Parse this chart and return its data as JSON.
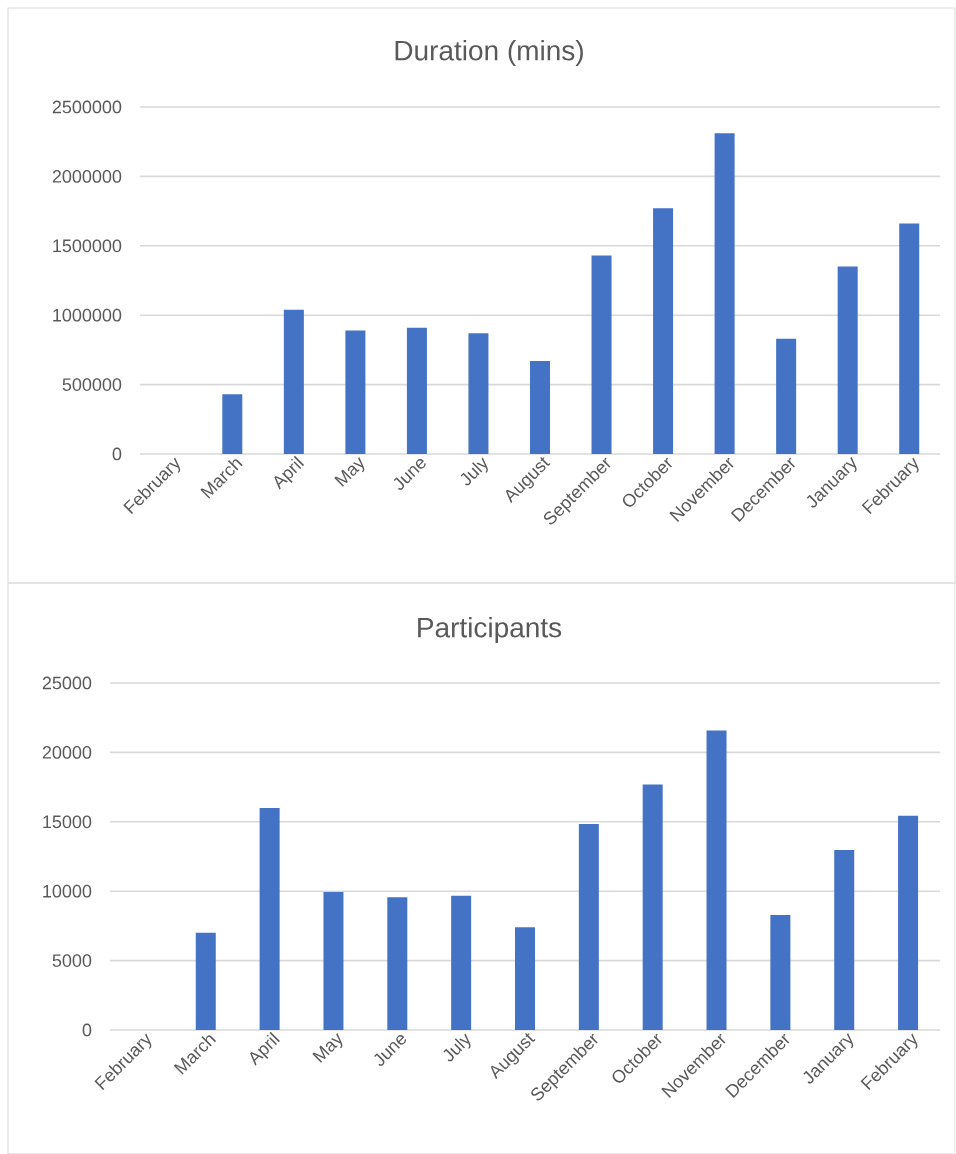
{
  "chart_data": [
    {
      "type": "bar",
      "title": "Duration (mins)",
      "categories": [
        "February",
        "March",
        "April",
        "May",
        "June",
        "July",
        "August",
        "September",
        "October",
        "November",
        "December",
        "January",
        "February"
      ],
      "values": [
        0,
        430000,
        1040000,
        890000,
        910000,
        870000,
        670000,
        1430000,
        1770000,
        2310000,
        830000,
        1350000,
        1660000
      ],
      "color": "#4472c4",
      "ylim": [
        0,
        2500000
      ],
      "yticks": [
        0,
        500000,
        1000000,
        1500000,
        2000000,
        2500000
      ],
      "grid": "y"
    },
    {
      "type": "bar",
      "title": "Participants",
      "categories": [
        "February",
        "March",
        "April",
        "May",
        "June",
        "July",
        "August",
        "September",
        "October",
        "November",
        "December",
        "January",
        "February"
      ],
      "values": [
        0,
        7000,
        16000,
        9950,
        9560,
        9680,
        7400,
        14840,
        17690,
        21570,
        8290,
        12970,
        15440
      ],
      "color": "#4472c4",
      "ylim": [
        0,
        25000
      ],
      "yticks": [
        0,
        5000,
        10000,
        15000,
        20000,
        25000
      ],
      "grid": "y"
    }
  ]
}
